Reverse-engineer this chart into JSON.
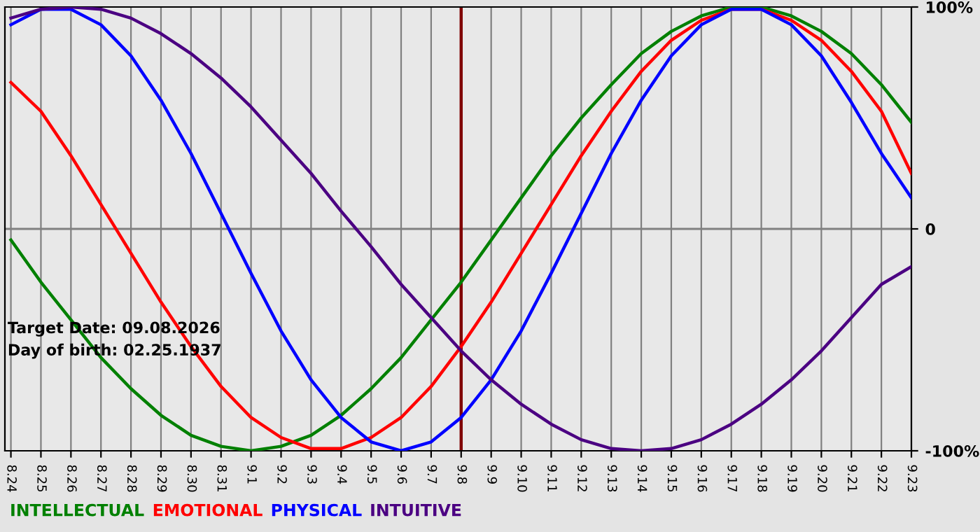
{
  "chart_data": {
    "type": "line",
    "categories": [
      "8.24",
      "8.25",
      "8.26",
      "8.27",
      "8.28",
      "8.29",
      "8.30",
      "8.31",
      "9.1",
      "9.2",
      "9.3",
      "9.4",
      "9.5",
      "9.6",
      "9.7",
      "9.8",
      "9.9",
      "9.10",
      "9.11",
      "9.12",
      "9.13",
      "9.14",
      "9.15",
      "9.16",
      "9.17",
      "9.18",
      "9.19",
      "9.20",
      "9.21",
      "9.22",
      "9.23"
    ],
    "series": [
      {
        "name": "INTELLECTUAL",
        "color": "#008000",
        "values": [
          -5,
          -24,
          -41,
          -58,
          -72,
          -84,
          -93,
          -98,
          -100,
          -98,
          -93,
          -84,
          -72,
          -58,
          -41,
          -24,
          -5,
          14,
          33,
          50,
          65,
          79,
          89,
          96,
          100,
          100,
          96,
          89,
          79,
          65,
          48
        ]
      },
      {
        "name": "EMOTIONAL",
        "color": "#ff0000",
        "values": [
          66,
          53,
          33,
          11,
          -11,
          -33,
          -53,
          -71,
          -85,
          -94,
          -99,
          -99,
          -94,
          -85,
          -71,
          -53,
          -33,
          -11,
          11,
          33,
          53,
          71,
          85,
          94,
          99,
          99,
          94,
          85,
          71,
          53,
          25
        ]
      },
      {
        "name": "PHYSICAL",
        "color": "#0000ff",
        "values": [
          92,
          99,
          99,
          92,
          78,
          58,
          34,
          7,
          -20,
          -46,
          -68,
          -85,
          -96,
          -100,
          -96,
          -85,
          -68,
          -46,
          -20,
          7,
          34,
          58,
          78,
          92,
          99,
          99,
          92,
          78,
          57,
          34,
          14
        ]
      },
      {
        "name": "INTUITIVE",
        "color": "#4b0082",
        "values": [
          95,
          99,
          100,
          99,
          95,
          88,
          79,
          68,
          55,
          40,
          25,
          8,
          -8,
          -25,
          -40,
          -55,
          -68,
          -79,
          -88,
          -95,
          -99,
          -100,
          -99,
          -95,
          -88,
          -79,
          -68,
          -55,
          -40,
          -25,
          -17
        ]
      }
    ],
    "ylim": [
      -100,
      100
    ],
    "yticks": [
      {
        "value": 100,
        "label": "100%"
      },
      0,
      {
        "value": -100,
        "label": "-100%"
      }
    ],
    "ref_lines": [
      {
        "axis": "y",
        "value": 0,
        "color": "#808080"
      },
      {
        "axis": "x",
        "value": "9.8",
        "color": "#800000"
      }
    ],
    "annotations": [
      "Target Date: 09.08.2026",
      "Day of birth: 02.25.1937"
    ],
    "grid": "x",
    "legend": "bottom",
    "marker": "none",
    "line_style": "solid"
  }
}
